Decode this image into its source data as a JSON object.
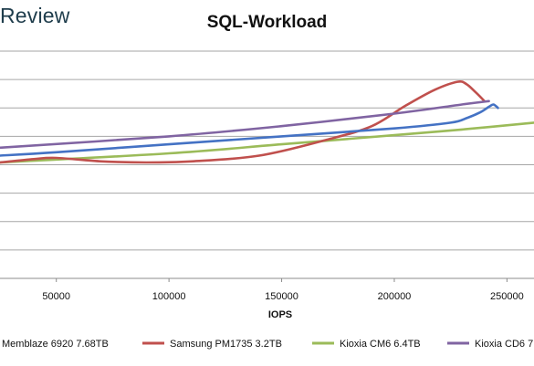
{
  "brand": "Review",
  "chart_data": {
    "type": "line",
    "title": "SQL-Workload",
    "xlabel": "IOPS",
    "ylabel": "",
    "xlim": [
      25000,
      262000
    ],
    "ylim": [
      0,
      10
    ],
    "x_ticks": [
      50000,
      100000,
      150000,
      200000,
      250000
    ],
    "grid": "horizontal",
    "legend_position": "bottom",
    "series": [
      {
        "name": "Memblaze 6920 7.68TB",
        "color": "#4472c4",
        "points": [
          [
            25000,
            5.4
          ],
          [
            50000,
            5.55
          ],
          [
            100000,
            5.9
          ],
          [
            150000,
            6.25
          ],
          [
            200000,
            6.6
          ],
          [
            225000,
            6.85
          ],
          [
            232000,
            7.05
          ],
          [
            238000,
            7.3
          ],
          [
            242000,
            7.55
          ],
          [
            244000,
            7.65
          ],
          [
            246000,
            7.5
          ]
        ]
      },
      {
        "name": "Samsung PM1735 3.2TB",
        "color": "#c0504d",
        "points": [
          [
            25000,
            5.1
          ],
          [
            40000,
            5.25
          ],
          [
            50000,
            5.3
          ],
          [
            70000,
            5.15
          ],
          [
            90000,
            5.1
          ],
          [
            110000,
            5.15
          ],
          [
            140000,
            5.4
          ],
          [
            170000,
            6.1
          ],
          [
            190000,
            6.7
          ],
          [
            205000,
            7.6
          ],
          [
            218000,
            8.3
          ],
          [
            228000,
            8.65
          ],
          [
            232000,
            8.55
          ],
          [
            236000,
            8.2
          ],
          [
            240000,
            7.8
          ]
        ]
      },
      {
        "name": "Kioxia CM6 6.4TB",
        "color": "#9bbb59",
        "points": [
          [
            25000,
            5.1
          ],
          [
            100000,
            5.5
          ],
          [
            150000,
            5.9
          ],
          [
            200000,
            6.3
          ],
          [
            230000,
            6.55
          ],
          [
            262000,
            6.85
          ]
        ]
      },
      {
        "name": "Kioxia CD6 7",
        "color": "#8064a2",
        "points": [
          [
            25000,
            5.75
          ],
          [
            100000,
            6.25
          ],
          [
            150000,
            6.7
          ],
          [
            200000,
            7.25
          ],
          [
            230000,
            7.65
          ],
          [
            242000,
            7.8
          ]
        ]
      }
    ]
  }
}
